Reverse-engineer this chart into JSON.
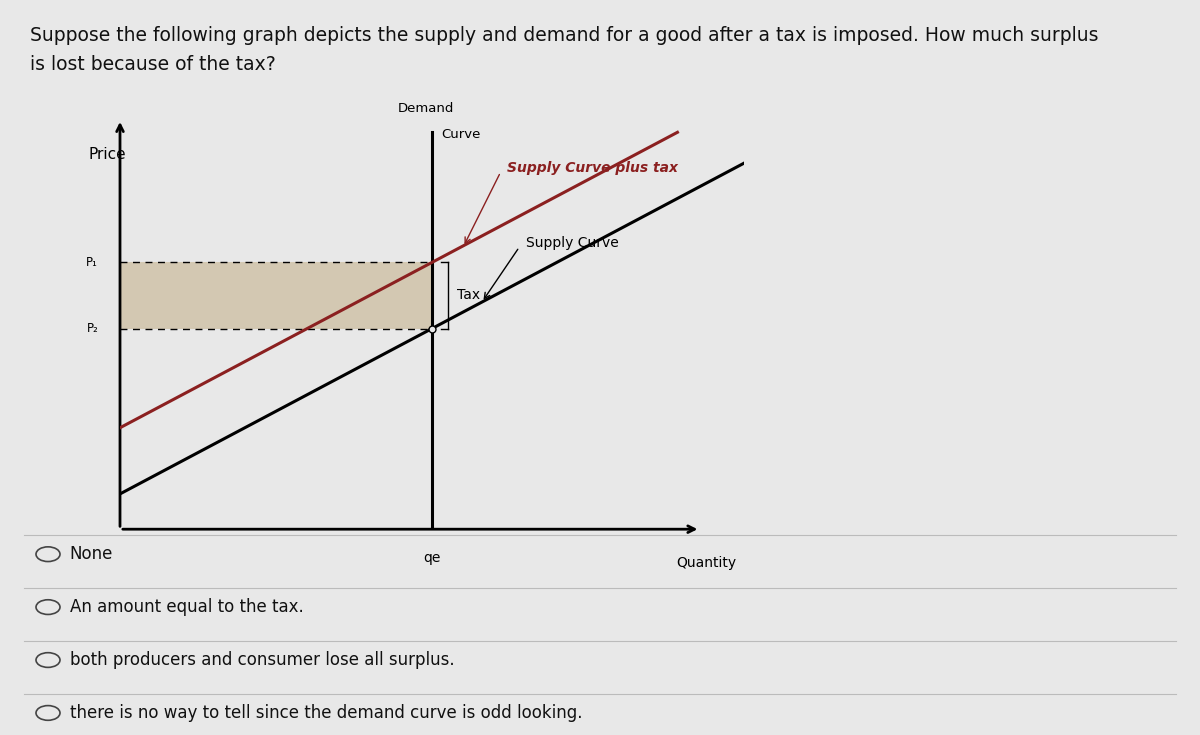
{
  "bg_color": "#e8e8e8",
  "chart_bg": "#dde4e4",
  "title_line1": "Suppose the following graph depicts the supply and demand for a good after a tax is imposed. How much surplus",
  "title_line2": "is lost because of the tax?",
  "title_fontsize": 13.5,
  "title_color": "#111111",
  "price_label": "Price",
  "quantity_label": "Quantity",
  "demand_curve_label_line1": "Demand",
  "demand_curve_label_line2": "Curve",
  "supply_plus_tax_label": "Supply Curve plus tax",
  "supply_label": "Supply Curve",
  "tax_label": "Tax",
  "qe_label": "qe",
  "p1_label": "P₁",
  "p2_label": "P₂",
  "supply_color": "#000000",
  "supply_tax_color": "#8B2020",
  "demand_color": "#000000",
  "axis_color": "#000000",
  "shaded_color": "#c8b896",
  "options": [
    "None",
    "An amount equal to the tax.",
    "both producers and consumer lose all surplus.",
    "there is no way to tell since the demand curve is odd looking."
  ],
  "option_fontsize": 12
}
